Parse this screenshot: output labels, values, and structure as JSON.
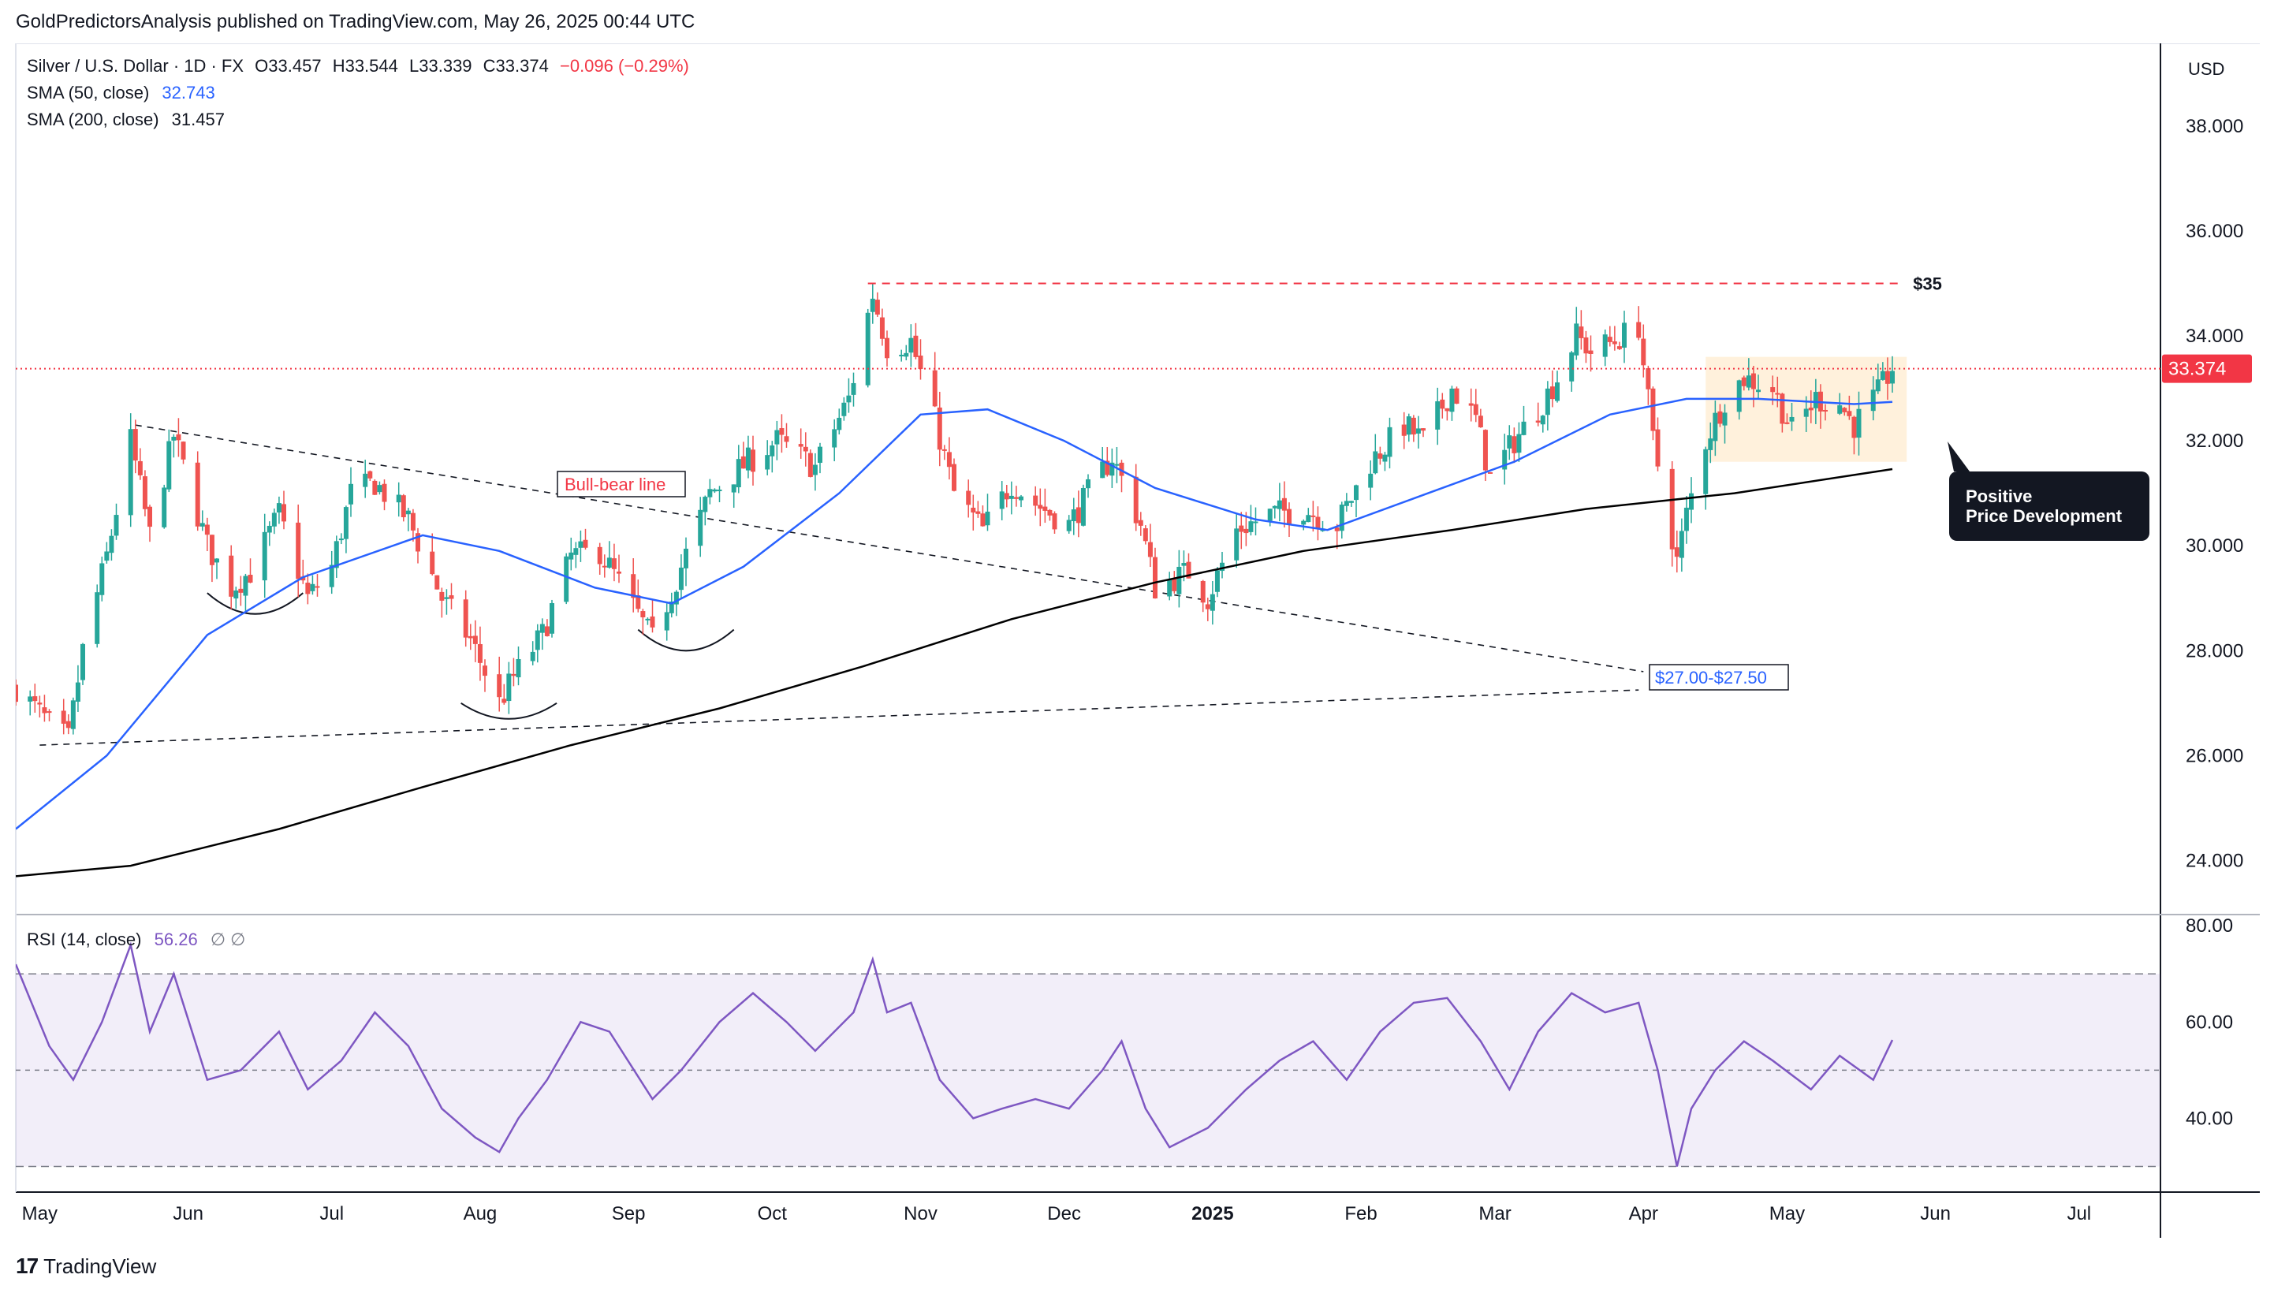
{
  "publisher": "GoldPredictorsAnalysis published on TradingView.com, May 26, 2025 00:44 UTC",
  "brand": "TradingView",
  "colors": {
    "up": "#26a69a",
    "down": "#ef5350",
    "sma50": "#2962ff",
    "sma200": "#000000",
    "rsi": "#7e57c2",
    "price_line": "#f23645"
  },
  "header": {
    "symbol_line": "Silver / U.S. Dollar · 1D · FX",
    "open": "O33.457",
    "high": "H33.544",
    "low": "L33.339",
    "close": "C33.374",
    "change": "−0.096 (−0.29%)",
    "sma50_label": "SMA (50, close)",
    "sma50_value": "32.743",
    "sma200_label": "SMA (200, close)",
    "sma200_value": "31.457",
    "rsi_label": "RSI (14, close)",
    "rsi_value": "56.26",
    "rsi_extra": "∅ ∅"
  },
  "annotations": {
    "resistance": "$35",
    "bull_bear": "Bull-bear line",
    "support_zone": "$27.00-$27.50",
    "callout": [
      "Positive",
      "Price Development"
    ],
    "last_price": "33.374"
  },
  "chart_data": {
    "type": "candlestick",
    "currency": "USD",
    "y_ticks": [
      "38.000",
      "36.000",
      "34.000",
      "32.000",
      "30.000",
      "28.000",
      "26.000",
      "24.000"
    ],
    "ylim": [
      23.0,
      39.5
    ],
    "x_ticks": [
      "May",
      "Jun",
      "Jul",
      "Aug",
      "Sep",
      "Oct",
      "Nov",
      "Dec",
      "2025",
      "Feb",
      "Mar",
      "Apr",
      "May",
      "Jun",
      "Jul"
    ],
    "x_range": [
      "2024-04-26",
      "2025-07-18"
    ],
    "last_price": 33.374,
    "resistance_level": 35,
    "support_zone": [
      27.0,
      27.5
    ],
    "price_path": [
      [
        "2024-04-26",
        27.3
      ],
      [
        "2024-05-03",
        26.6
      ],
      [
        "2024-05-07",
        26.3
      ],
      [
        "2024-05-10",
        28.0
      ],
      [
        "2024-05-15",
        29.8
      ],
      [
        "2024-05-20",
        32.0
      ],
      [
        "2024-05-24",
        30.2
      ],
      [
        "2024-05-29",
        32.1
      ],
      [
        "2024-06-05",
        30.0
      ],
      [
        "2024-06-10",
        29.2
      ],
      [
        "2024-06-14",
        29.5
      ],
      [
        "2024-06-20",
        30.6
      ],
      [
        "2024-06-26",
        29.0
      ],
      [
        "2024-07-01",
        29.6
      ],
      [
        "2024-07-05",
        31.0
      ],
      [
        "2024-07-10",
        31.2
      ],
      [
        "2024-07-17",
        30.5
      ],
      [
        "2024-07-24",
        29.0
      ],
      [
        "2024-07-30",
        28.2
      ],
      [
        "2024-08-05",
        27.0
      ],
      [
        "2024-08-08",
        27.5
      ],
      [
        "2024-08-14",
        28.3
      ],
      [
        "2024-08-20",
        29.8
      ],
      [
        "2024-08-26",
        29.9
      ],
      [
        "2024-08-30",
        29.3
      ],
      [
        "2024-09-06",
        28.2
      ],
      [
        "2024-09-12",
        29.6
      ],
      [
        "2024-09-18",
        31.0
      ],
      [
        "2024-09-26",
        31.6
      ],
      [
        "2024-10-02",
        32.0
      ],
      [
        "2024-10-10",
        31.5
      ],
      [
        "2024-10-17",
        32.8
      ],
      [
        "2024-10-22",
        34.8
      ],
      [
        "2024-10-25",
        33.8
      ],
      [
        "2024-10-30",
        33.9
      ],
      [
        "2024-11-04",
        32.4
      ],
      [
        "2024-11-08",
        31.0
      ],
      [
        "2024-11-14",
        30.3
      ],
      [
        "2024-11-20",
        31.2
      ],
      [
        "2024-11-25",
        30.8
      ],
      [
        "2024-12-02",
        30.4
      ],
      [
        "2024-12-06",
        31.0
      ],
      [
        "2024-12-11",
        31.7
      ],
      [
        "2024-12-17",
        30.4
      ],
      [
        "2024-12-20",
        29.2
      ],
      [
        "2024-12-27",
        29.5
      ],
      [
        "2024-12-31",
        29.0
      ],
      [
        "2025-01-06",
        30.3
      ],
      [
        "2025-01-13",
        30.6
      ],
      [
        "2025-01-20",
        30.7
      ],
      [
        "2025-01-27",
        30.4
      ],
      [
        "2025-02-03",
        31.6
      ],
      [
        "2025-02-10",
        32.3
      ],
      [
        "2025-02-14",
        32.0
      ],
      [
        "2025-02-20",
        33.0
      ],
      [
        "2025-02-25",
        32.4
      ],
      [
        "2025-02-28",
        31.3
      ],
      [
        "2025-03-05",
        32.0
      ],
      [
        "2025-03-10",
        32.6
      ],
      [
        "2025-03-14",
        33.2
      ],
      [
        "2025-03-18",
        34.0
      ],
      [
        "2025-03-21",
        33.7
      ],
      [
        "2025-03-26",
        33.9
      ],
      [
        "2025-03-31",
        34.2
      ],
      [
        "2025-04-03",
        32.0
      ],
      [
        "2025-04-08",
        29.7
      ],
      [
        "2025-04-10",
        30.6
      ],
      [
        "2025-04-14",
        32.0
      ],
      [
        "2025-04-18",
        32.8
      ],
      [
        "2025-04-22",
        33.2
      ],
      [
        "2025-04-28",
        33.0
      ],
      [
        "2025-05-02",
        32.2
      ],
      [
        "2025-05-07",
        32.8
      ],
      [
        "2025-05-12",
        32.7
      ],
      [
        "2025-05-15",
        32.3
      ],
      [
        "2025-05-20",
        32.9
      ],
      [
        "2025-05-23",
        33.4
      ]
    ],
    "sma50_path": [
      [
        "2024-04-26",
        24.6
      ],
      [
        "2024-05-15",
        26.0
      ],
      [
        "2024-06-05",
        28.3
      ],
      [
        "2024-06-25",
        29.4
      ],
      [
        "2024-07-20",
        30.2
      ],
      [
        "2024-08-05",
        29.9
      ],
      [
        "2024-08-25",
        29.2
      ],
      [
        "2024-09-10",
        28.9
      ],
      [
        "2024-09-25",
        29.6
      ],
      [
        "2024-10-15",
        31.0
      ],
      [
        "2024-11-01",
        32.5
      ],
      [
        "2024-11-15",
        32.6
      ],
      [
        "2024-12-01",
        32.0
      ],
      [
        "2024-12-20",
        31.1
      ],
      [
        "2025-01-10",
        30.5
      ],
      [
        "2025-01-25",
        30.3
      ],
      [
        "2025-02-15",
        31.0
      ],
      [
        "2025-03-05",
        31.6
      ],
      [
        "2025-03-25",
        32.5
      ],
      [
        "2025-04-10",
        32.8
      ],
      [
        "2025-04-25",
        32.8
      ],
      [
        "2025-05-15",
        32.7
      ],
      [
        "2025-05-23",
        32.74
      ]
    ],
    "sma200_path": [
      [
        "2024-04-26",
        23.7
      ],
      [
        "2024-05-20",
        23.9
      ],
      [
        "2024-06-20",
        24.6
      ],
      [
        "2024-07-20",
        25.4
      ],
      [
        "2024-08-20",
        26.2
      ],
      [
        "2024-09-20",
        26.9
      ],
      [
        "2024-10-20",
        27.7
      ],
      [
        "2024-11-20",
        28.6
      ],
      [
        "2024-12-20",
        29.3
      ],
      [
        "2025-01-20",
        29.9
      ],
      [
        "2025-02-20",
        30.3
      ],
      [
        "2025-03-20",
        30.7
      ],
      [
        "2025-04-20",
        31.0
      ],
      [
        "2025-05-23",
        31.46
      ]
    ],
    "rsi": {
      "ylim": [
        25,
        82
      ],
      "y_ticks": [
        "80.00",
        "60.00",
        "40.00"
      ],
      "bands": [
        30,
        70
      ],
      "mid": 50,
      "last": 56.26,
      "path": [
        [
          "2024-04-26",
          72
        ],
        [
          "2024-05-03",
          55
        ],
        [
          "2024-05-08",
          48
        ],
        [
          "2024-05-14",
          60
        ],
        [
          "2024-05-20",
          76
        ],
        [
          "2024-05-24",
          58
        ],
        [
          "2024-05-29",
          70
        ],
        [
          "2024-06-05",
          48
        ],
        [
          "2024-06-12",
          50
        ],
        [
          "2024-06-20",
          58
        ],
        [
          "2024-06-26",
          46
        ],
        [
          "2024-07-03",
          52
        ],
        [
          "2024-07-10",
          62
        ],
        [
          "2024-07-17",
          55
        ],
        [
          "2024-07-24",
          42
        ],
        [
          "2024-07-31",
          36
        ],
        [
          "2024-08-05",
          33
        ],
        [
          "2024-08-09",
          40
        ],
        [
          "2024-08-15",
          48
        ],
        [
          "2024-08-22",
          60
        ],
        [
          "2024-08-28",
          58
        ],
        [
          "2024-09-06",
          44
        ],
        [
          "2024-09-12",
          50
        ],
        [
          "2024-09-20",
          60
        ],
        [
          "2024-09-27",
          66
        ],
        [
          "2024-10-04",
          60
        ],
        [
          "2024-10-10",
          54
        ],
        [
          "2024-10-18",
          62
        ],
        [
          "2024-10-22",
          73
        ],
        [
          "2024-10-25",
          62
        ],
        [
          "2024-10-30",
          64
        ],
        [
          "2024-11-05",
          48
        ],
        [
          "2024-11-12",
          40
        ],
        [
          "2024-11-18",
          42
        ],
        [
          "2024-11-25",
          44
        ],
        [
          "2024-12-02",
          42
        ],
        [
          "2024-12-09",
          50
        ],
        [
          "2024-12-13",
          56
        ],
        [
          "2024-12-18",
          42
        ],
        [
          "2024-12-23",
          34
        ],
        [
          "2024-12-31",
          38
        ],
        [
          "2025-01-08",
          46
        ],
        [
          "2025-01-15",
          52
        ],
        [
          "2025-01-22",
          56
        ],
        [
          "2025-01-29",
          48
        ],
        [
          "2025-02-05",
          58
        ],
        [
          "2025-02-12",
          64
        ],
        [
          "2025-02-19",
          65
        ],
        [
          "2025-02-26",
          56
        ],
        [
          "2025-03-04",
          46
        ],
        [
          "2025-03-10",
          58
        ],
        [
          "2025-03-17",
          66
        ],
        [
          "2025-03-24",
          62
        ],
        [
          "2025-03-31",
          64
        ],
        [
          "2025-04-04",
          50
        ],
        [
          "2025-04-08",
          30
        ],
        [
          "2025-04-11",
          42
        ],
        [
          "2025-04-16",
          50
        ],
        [
          "2025-04-22",
          56
        ],
        [
          "2025-04-28",
          52
        ],
        [
          "2025-05-06",
          46
        ],
        [
          "2025-05-12",
          53
        ],
        [
          "2025-05-19",
          48
        ],
        [
          "2025-05-23",
          56.26
        ]
      ]
    }
  }
}
